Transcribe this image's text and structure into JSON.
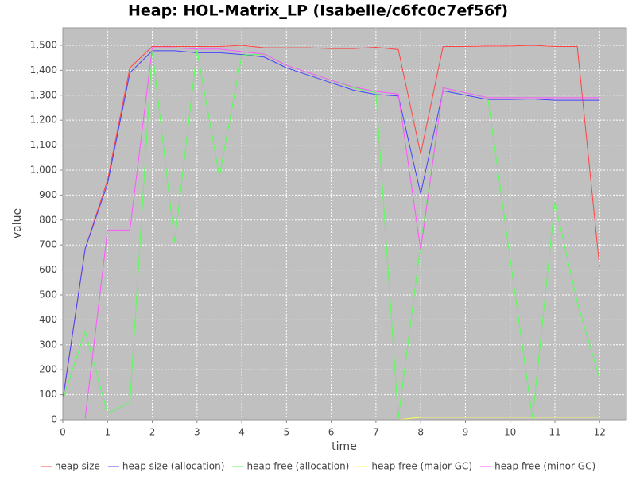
{
  "chart_data": {
    "type": "line",
    "title": "Heap: HOL-Matrix_LP (Isabelle/c6fc0c7ef56f)",
    "x_label": "time",
    "y_label": "value",
    "x": [
      0,
      0.5,
      1,
      1.5,
      2,
      2.5,
      3,
      3.5,
      4,
      4.5,
      5,
      5.5,
      6,
      6.5,
      7,
      7.5,
      8,
      8.5,
      9,
      9.5,
      10,
      10.5,
      11,
      11.5,
      12
    ],
    "xlim": [
      0,
      12.6
    ],
    "xticks": [
      0,
      1,
      2,
      3,
      4,
      5,
      6,
      7,
      8,
      9,
      10,
      11,
      12
    ],
    "ylim": [
      0,
      1570
    ],
    "yticks": [
      0,
      100,
      200,
      300,
      400,
      500,
      600,
      700,
      800,
      900,
      {
        "value": 1000,
        "label": "1,000"
      },
      {
        "value": 1100,
        "label": "1,100"
      },
      {
        "value": 1200,
        "label": "1,200"
      },
      {
        "value": 1300,
        "label": "1,300"
      },
      {
        "value": 1400,
        "label": "1,400"
      },
      {
        "value": 1500,
        "label": "1,500"
      }
    ],
    "grid": true,
    "legend": "bottom",
    "series": [
      {
        "name": "heap size",
        "color": "#ff4444",
        "values": [
          80,
          685,
          960,
          1410,
          1495,
          1495,
          1495,
          1495,
          1500,
          1490,
          1490,
          1490,
          1487,
          1487,
          1492,
          1483,
          1065,
          1495,
          1495,
          1497,
          1497,
          1500,
          1495,
          1495,
          610
        ]
      },
      {
        "name": "heap size (allocation)",
        "color": "#4444ff",
        "values": [
          80,
          685,
          945,
          1390,
          1478,
          1478,
          1470,
          1470,
          1463,
          1453,
          1410,
          1380,
          1350,
          1320,
          1303,
          1297,
          905,
          1318,
          1300,
          1283,
          1283,
          1285,
          1280,
          1280,
          1280
        ]
      },
      {
        "name": "heap free (allocation)",
        "color": "#55ff55",
        "values": [
          80,
          355,
          25,
          70,
          1480,
          710,
          1480,
          975,
          1460,
          1465,
          1420,
          1390,
          1360,
          1330,
          1310,
          5,
          700,
          1330,
          1310,
          1290,
          645,
          5,
          870,
          470,
          165
        ]
      },
      {
        "name": "heap free (major GC)",
        "color": "#ffff55",
        "values": [
          0,
          0,
          0,
          0,
          0,
          0,
          0,
          0,
          0,
          0,
          0,
          0,
          0,
          0,
          0,
          0,
          10,
          10,
          10,
          10,
          10,
          10,
          10,
          10,
          10
        ]
      },
      {
        "name": "heap free (minor GC)",
        "color": "#ff55ff",
        "values": [
          null,
          5,
          760,
          760,
          1490,
          1490,
          1485,
          1485,
          1475,
          1465,
          1420,
          1390,
          1360,
          1333,
          1315,
          1305,
          680,
          1330,
          1310,
          1290,
          1290,
          1290,
          1290,
          1290,
          1290
        ]
      }
    ]
  }
}
